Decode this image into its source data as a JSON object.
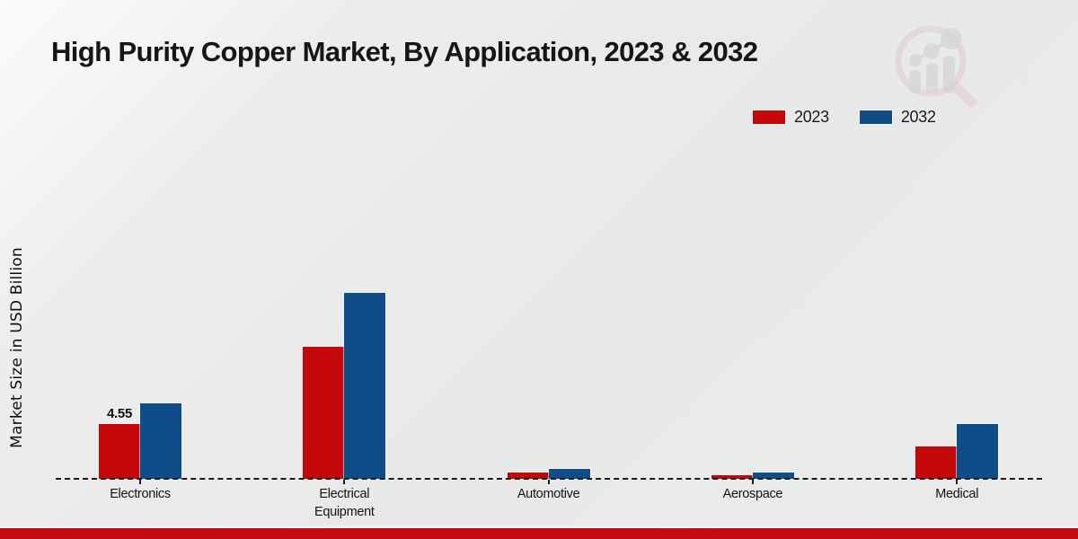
{
  "page": {
    "title": "High Purity Copper Market, By Application, 2023 & 2032"
  },
  "colors": {
    "series_2023_red": "#c40708",
    "series_2032_blue": "#0e4d8a",
    "footer_bar_red": "#c20b0e",
    "baseline_dash": "#1b1b1b",
    "watermark_pink": "#dfb0b4",
    "watermark_gray": "#c4c5c9"
  },
  "y_axis": {
    "label": "Market Size in USD Billion"
  },
  "legend": {
    "position": "top-right",
    "entries": [
      {
        "label": "2023",
        "color": "#c40708"
      },
      {
        "label": "2032",
        "color": "#0e4d8a"
      }
    ]
  },
  "watermark": {
    "name": "market-research-future-logo"
  },
  "chart_data": {
    "type": "bar",
    "title": "High Purity Copper Market, By Application, 2023 & 2032",
    "xlabel": "",
    "ylabel": "Market Size in USD Billion",
    "categories": [
      "Electronics",
      "Electrical Equipment",
      "Automotive",
      "Aerospace",
      "Medical"
    ],
    "series": [
      {
        "name": "2023",
        "color": "#c40708",
        "values": [
          4.55,
          11.0,
          0.5,
          0.3,
          2.7
        ],
        "value_labels": [
          "4.55",
          "",
          "",
          "",
          ""
        ]
      },
      {
        "name": "2032",
        "color": "#0e4d8a",
        "values": [
          6.3,
          15.5,
          0.8,
          0.5,
          4.6
        ],
        "value_labels": [
          "",
          "",
          "",
          "",
          ""
        ]
      }
    ],
    "ylim": [
      0,
      16
    ],
    "grid": false,
    "axis_line_style": "dashed",
    "legend_position": "top-right"
  }
}
